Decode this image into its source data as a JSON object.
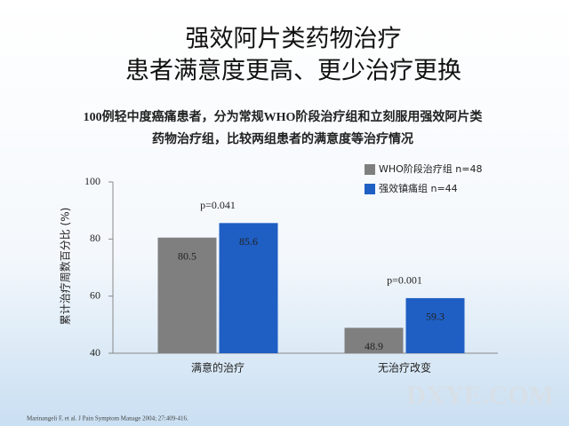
{
  "slide": {
    "title": [
      "强效阿片类药物治疗",
      "患者满意度更高、更少治疗更换"
    ],
    "subtitle": [
      "100例轻中度癌痛患者，分为常规WHO阶段治疗组和立刻服用强效阿片类",
      "药物治疗组，比较两组患者的满意度等治疗情况"
    ],
    "footnote": "Marinangeli F, et al. J Pain Symptom Manage 2004; 27:409-416.",
    "watermark": "DXYE.COM"
  },
  "chart_data": {
    "type": "bar",
    "ylabel": "累计治疗周数百分比 (%)",
    "categories": [
      "满意的治疗",
      "无治疗改变"
    ],
    "series": [
      {
        "name": "WHO阶段治疗组 n=48",
        "color": "#7f7f7f",
        "values": [
          80.5,
          48.9
        ]
      },
      {
        "name": "强效镇痛组 n=44",
        "color": "#1f5fc4",
        "values": [
          85.6,
          59.3
        ]
      }
    ],
    "annotations": [
      "p=0.041",
      "p=0.001"
    ],
    "ylim": [
      40,
      100
    ],
    "yticks": [
      40,
      60,
      80,
      100
    ]
  }
}
